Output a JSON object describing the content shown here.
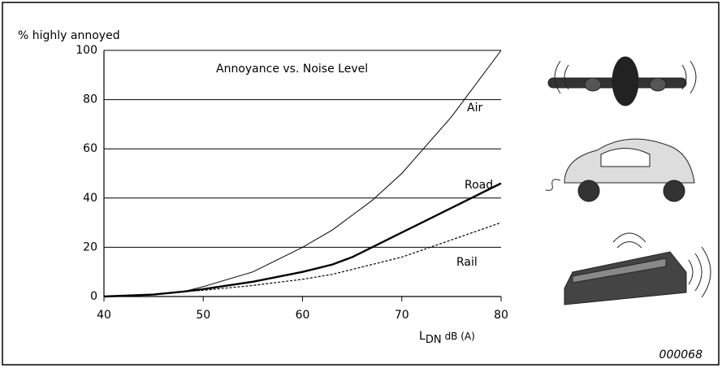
{
  "chart_data": {
    "type": "line",
    "title": "Annoyance vs. Noise Level",
    "y_label": "% highly annoyed",
    "x_label": "L",
    "x_label_sub": "DN",
    "x_label_unit": "dB (A)",
    "figure_id": "000068",
    "x": [
      40,
      45,
      48,
      50,
      55,
      60,
      63,
      65,
      67,
      70,
      75,
      80
    ],
    "series": [
      {
        "name": "Air",
        "color": "#000000",
        "style": "thin",
        "values": [
          0,
          0.8,
          2,
          4,
          10,
          20,
          27,
          33,
          39,
          50,
          73,
          100
        ]
      },
      {
        "name": "Road",
        "color": "#000000",
        "style": "thick",
        "values": [
          0,
          0.8,
          2,
          3,
          6,
          10,
          13,
          16,
          20,
          26,
          36,
          46
        ]
      },
      {
        "name": "Rail",
        "color": "#000000",
        "style": "dashed",
        "values": [
          0,
          0.8,
          2,
          2.5,
          4.5,
          7,
          9,
          11,
          13,
          16,
          23,
          30
        ]
      }
    ],
    "xlim": [
      40,
      80
    ],
    "xticks": [
      40,
      50,
      60,
      70,
      80
    ],
    "ylim": [
      0,
      100
    ],
    "yticks": [
      0,
      20,
      40,
      60,
      80,
      100
    ],
    "grid": true
  }
}
